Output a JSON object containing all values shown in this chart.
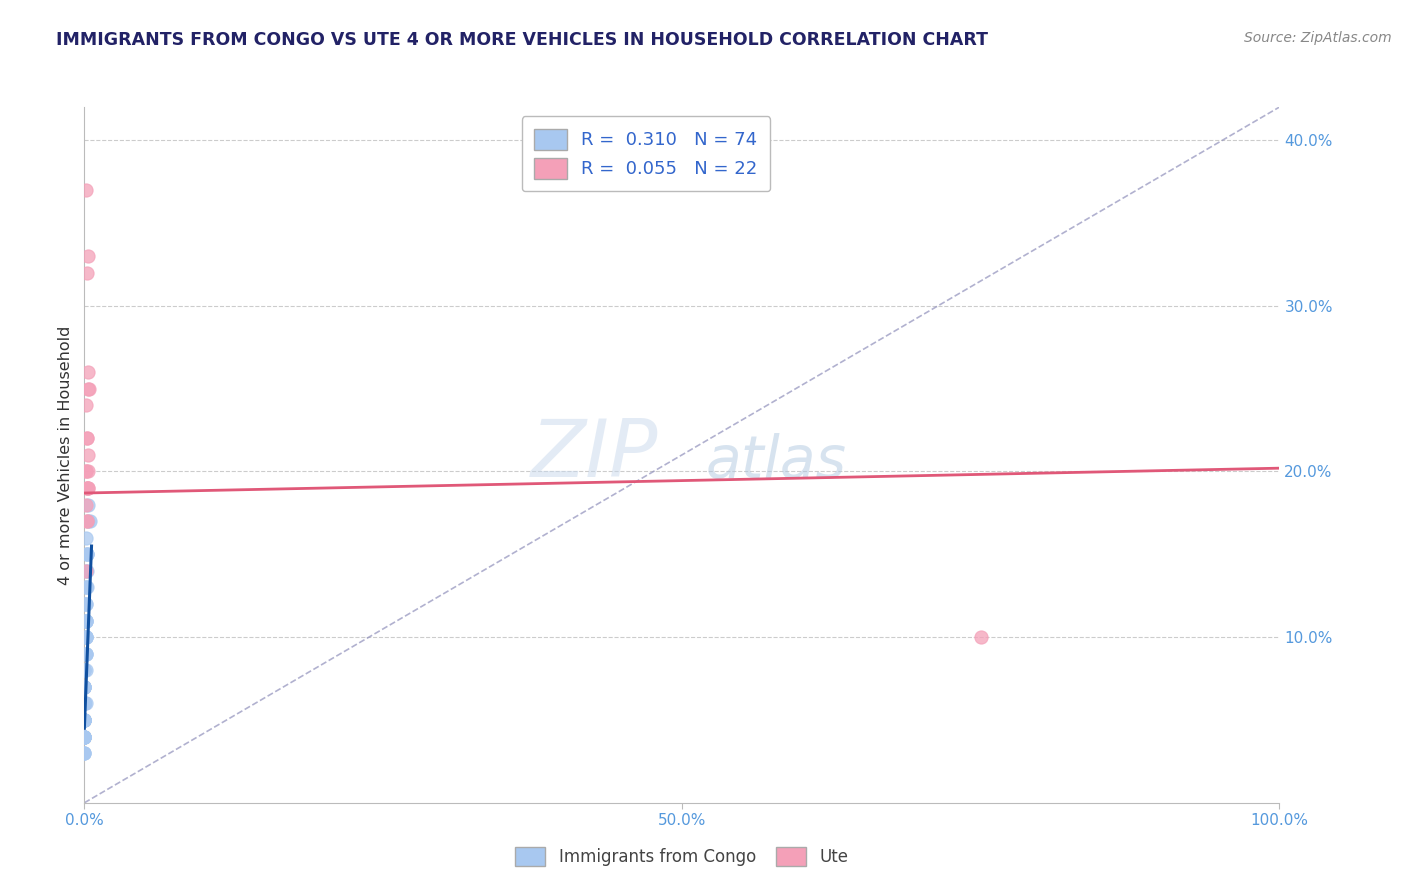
{
  "title": "IMMIGRANTS FROM CONGO VS UTE 4 OR MORE VEHICLES IN HOUSEHOLD CORRELATION CHART",
  "source": "Source: ZipAtlas.com",
  "xlabel_blue": "Immigrants from Congo",
  "xlabel_pink": "Ute",
  "ylabel": "4 or more Vehicles in Household",
  "xlim": [
    0.0,
    1.0
  ],
  "ylim": [
    0.0,
    0.42
  ],
  "xtick_positions": [
    0.0,
    0.5,
    1.0
  ],
  "xtick_labels": [
    "0.0%",
    "50.0%",
    "100.0%"
  ],
  "ytick_positions": [
    0.1,
    0.2,
    0.3,
    0.4
  ],
  "ytick_labels": [
    "10.0%",
    "20.0%",
    "30.0%",
    "40.0%"
  ],
  "R_blue": 0.31,
  "N_blue": 74,
  "R_pink": 0.055,
  "N_pink": 22,
  "blue_color": "#A8C8F0",
  "pink_color": "#F4A0B8",
  "blue_line_color": "#1050A0",
  "pink_line_color": "#E05878",
  "diagonal_color": "#9090BB",
  "watermark_zip": "ZIP",
  "watermark_atlas": "atlas",
  "blue_scatter_x": [
    0.0005,
    0.001,
    0.0015,
    0.002,
    0.0025,
    0.003,
    0.0,
    0.0,
    0.001,
    0.002,
    0.001,
    0.003,
    0.001,
    0.0,
    0.001,
    0.0,
    0.0,
    0.002,
    0.001,
    0.0,
    0.0,
    0.0,
    0.001,
    0.0,
    0.0,
    0.0,
    0.001,
    0.0,
    0.0,
    0.001,
    0.0,
    0.0,
    0.001,
    0.0,
    0.0,
    0.0,
    0.0,
    0.0,
    0.002,
    0.0,
    0.0,
    0.001,
    0.001,
    0.0,
    0.0,
    0.0,
    0.0,
    0.0,
    0.0,
    0.0,
    0.0,
    0.0,
    0.0,
    0.0,
    0.001,
    0.0,
    0.0,
    0.001,
    0.001,
    0.0,
    0.0,
    0.005,
    0.001,
    0.0,
    0.0,
    0.0,
    0.0,
    0.0,
    0.0,
    0.001,
    0.0,
    0.0,
    0.001,
    0.0
  ],
  "blue_scatter_y": [
    0.12,
    0.16,
    0.13,
    0.15,
    0.14,
    0.17,
    0.08,
    0.05,
    0.11,
    0.15,
    0.09,
    0.18,
    0.1,
    0.07,
    0.06,
    0.04,
    0.03,
    0.13,
    0.1,
    0.05,
    0.04,
    0.06,
    0.09,
    0.07,
    0.08,
    0.05,
    0.11,
    0.04,
    0.05,
    0.12,
    0.07,
    0.08,
    0.14,
    0.05,
    0.04,
    0.06,
    0.05,
    0.07,
    0.15,
    0.04,
    0.06,
    0.1,
    0.11,
    0.05,
    0.06,
    0.07,
    0.04,
    0.03,
    0.05,
    0.06,
    0.04,
    0.05,
    0.07,
    0.06,
    0.12,
    0.05,
    0.04,
    0.11,
    0.13,
    0.04,
    0.05,
    0.17,
    0.1,
    0.06,
    0.07,
    0.04,
    0.05,
    0.06,
    0.03,
    0.08,
    0.05,
    0.04,
    0.09,
    0.06
  ],
  "pink_scatter_x": [
    0.001,
    0.002,
    0.003,
    0.002,
    0.003,
    0.001,
    0.004,
    0.003,
    0.002,
    0.001,
    0.003,
    0.002,
    0.003,
    0.002,
    0.001,
    0.002,
    0.001,
    0.003,
    0.002,
    0.001,
    0.003,
    0.75
  ],
  "pink_scatter_y": [
    0.37,
    0.32,
    0.33,
    0.22,
    0.26,
    0.24,
    0.25,
    0.21,
    0.22,
    0.2,
    0.25,
    0.19,
    0.2,
    0.17,
    0.18,
    0.19,
    0.14,
    0.19,
    0.17,
    0.2,
    0.19,
    0.1
  ],
  "blue_line_x": [
    0.0,
    0.006
  ],
  "blue_line_y": [
    0.045,
    0.155
  ],
  "pink_line_x": [
    0.0,
    1.0
  ],
  "pink_line_y": [
    0.187,
    0.202
  ],
  "diag_line_x": [
    0.0,
    1.0
  ],
  "diag_line_y": [
    0.0,
    0.42
  ],
  "grid_color": "#CCCCCC",
  "title_color": "#222266",
  "axis_tick_color": "#5599DD",
  "ylabel_color": "#333333",
  "source_color": "#888888"
}
